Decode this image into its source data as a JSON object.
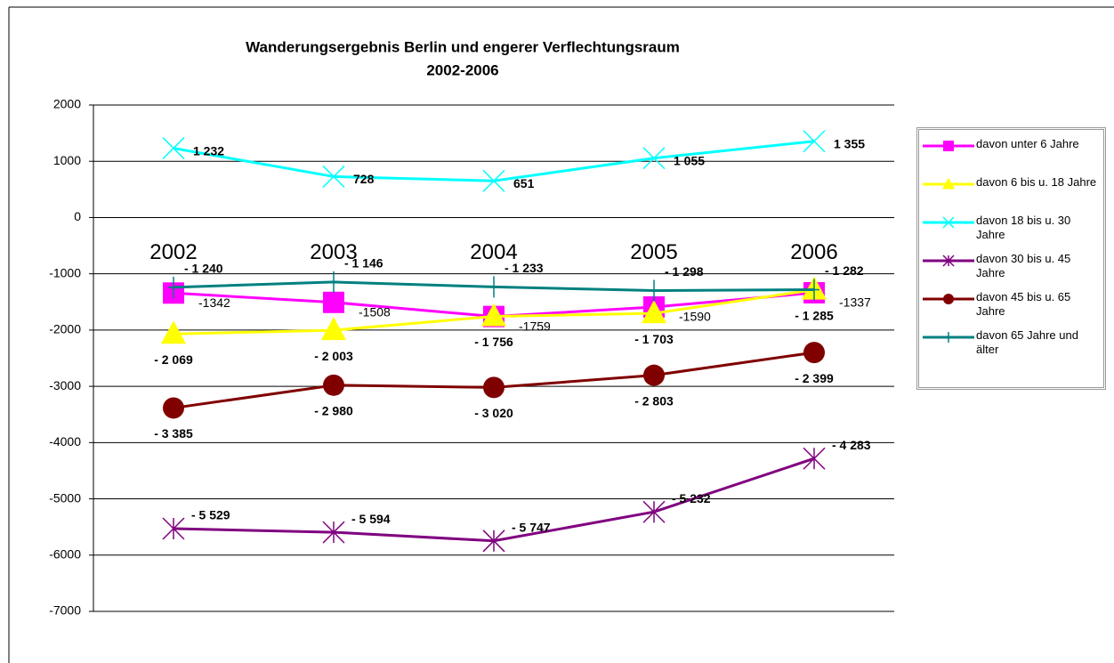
{
  "chart_data": {
    "type": "line",
    "title": "Wanderungsergebnis Berlin und engerer Verflechtungsraum",
    "subtitle": "2002-2006",
    "categories": [
      "2002",
      "2003",
      "2004",
      "2005",
      "2006"
    ],
    "ylim": [
      -7000,
      2000
    ],
    "yticks": [
      -7000,
      -6000,
      -5000,
      -4000,
      -3000,
      -2000,
      -1000,
      0,
      1000,
      2000
    ],
    "grid": true,
    "legend": "right",
    "series": [
      {
        "name": "davon unter 6 Jahre",
        "color": "#ff00ff",
        "marker": "square",
        "values": [
          -1342,
          -1508,
          -1759,
          -1590,
          -1337
        ]
      },
      {
        "name": "davon 6 bis u. 18 Jahre",
        "color": "#ffff00",
        "marker": "triangle",
        "values": [
          -2069,
          -2003,
          -1756,
          -1703,
          -1285
        ],
        "value_labels": [
          "- 2 069",
          "- 2 003",
          "- 1 756",
          "- 1 703",
          "- 1 285"
        ]
      },
      {
        "name": "davon 18 bis u. 30 Jahre",
        "color": "#00ffff",
        "marker": "x",
        "values": [
          1232,
          728,
          651,
          1055,
          1355
        ],
        "value_labels": [
          "1 232",
          "728",
          "651",
          "1 055",
          "1 355"
        ]
      },
      {
        "name": "davon 30 bis u. 45 Jahre",
        "color": "#800080",
        "marker": "star",
        "values": [
          -5529,
          -5594,
          -5747,
          -5232,
          -4283
        ],
        "value_labels": [
          "- 5 529",
          "- 5 594",
          "- 5 747",
          "- 5 232",
          "- 4 283"
        ]
      },
      {
        "name": "davon 45 bis u. 65 Jahre",
        "color": "#800000",
        "marker": "circle",
        "values": [
          -3385,
          -2980,
          -3020,
          -2803,
          -2399
        ],
        "value_labels": [
          "- 3 385",
          "- 2 980",
          "- 3 020",
          "- 2 803",
          "- 2 399"
        ]
      },
      {
        "name": "davon 65 Jahre und älter",
        "color": "#008080",
        "marker": "plus",
        "values": [
          -1240,
          -1146,
          -1233,
          -1298,
          -1282
        ],
        "value_labels": [
          "- 1 240",
          "- 1 146",
          "- 1 233",
          "- 1 298",
          "- 1 282"
        ]
      }
    ]
  }
}
